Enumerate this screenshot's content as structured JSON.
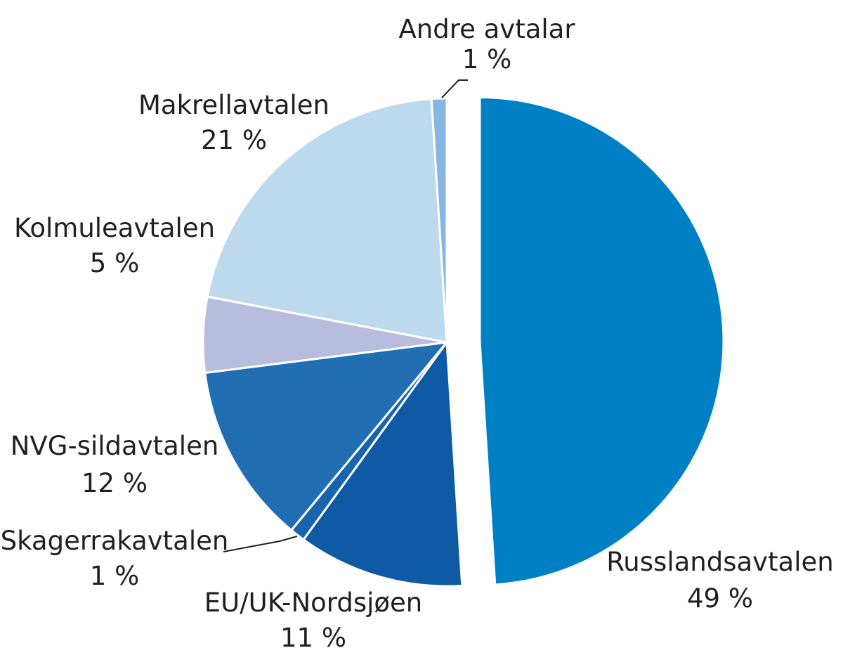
{
  "chart_data": {
    "type": "pie",
    "start": "top",
    "direction": "clockwise",
    "exploded": [
      "Russlandsavtalen"
    ],
    "slices": [
      {
        "label": "Russlandsavtalen",
        "value": 49,
        "value_label": "49 %",
        "color": "#0080c4"
      },
      {
        "label": "EU/UK-Nordsjøen",
        "value": 11,
        "value_label": "11 %",
        "color": "#0f5aa5"
      },
      {
        "label": "Skagerrakavtalen",
        "value": 1,
        "value_label": "1 %",
        "color": "#1864ad"
      },
      {
        "label": "NVG-sildavtalen",
        "value": 12,
        "value_label": "12 %",
        "color": "#226eb3"
      },
      {
        "label": "Kolmuleavtalen",
        "value": 5,
        "value_label": "5 %",
        "color": "#b8bddd"
      },
      {
        "label": "Makrellavtalen",
        "value": 21,
        "value_label": "21 %",
        "color": "#bcd9ee"
      },
      {
        "label": "Andre avtalar",
        "value": 1,
        "value_label": "1 %",
        "color": "#86b6e1"
      }
    ]
  }
}
